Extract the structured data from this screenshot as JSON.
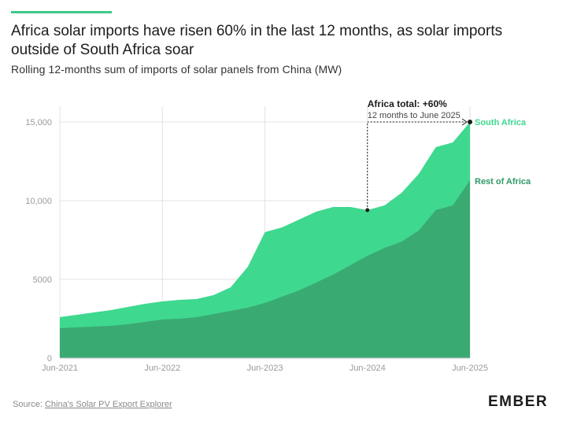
{
  "header": {
    "title": "Africa solar imports have risen 60% in the last 12 months, as solar imports outside of South Africa soar",
    "subtitle": "Rolling 12-months sum of imports of solar panels from China (MW)"
  },
  "footer": {
    "source_prefix": "Source: ",
    "source_link": "China's Solar PV Export Explorer",
    "logo": "EMBER"
  },
  "colors": {
    "south_africa": "#3fd88f",
    "rest_of_africa": "#3aaa73",
    "grid": "#e3e3e3",
    "axis_text": "#9a9a9a",
    "accent": "#3cc98b"
  },
  "chart_data": {
    "type": "area",
    "stacked": true,
    "xlabel": "",
    "ylabel": "",
    "xlim": [
      "2021-06",
      "2025-06"
    ],
    "ylim": [
      0,
      15000
    ],
    "y_ticks": [
      0,
      5000,
      10000,
      15000
    ],
    "y_tick_labels": [
      "0",
      "5000",
      "10,000",
      "15,000"
    ],
    "x_ticks": [
      "2021-06",
      "2022-06",
      "2023-06",
      "2024-06",
      "2025-06"
    ],
    "x_tick_labels": [
      "Jun-2021",
      "Jun-2022",
      "Jun-2023",
      "Jun-2024",
      "Jun-2025"
    ],
    "grid": true,
    "x": [
      "2021-06",
      "2021-08",
      "2021-10",
      "2021-12",
      "2022-02",
      "2022-04",
      "2022-06",
      "2022-08",
      "2022-10",
      "2022-12",
      "2023-02",
      "2023-04",
      "2023-06",
      "2023-08",
      "2023-10",
      "2023-12",
      "2024-02",
      "2024-04",
      "2024-06",
      "2024-08",
      "2024-10",
      "2024-12",
      "2025-02",
      "2025-04",
      "2025-06"
    ],
    "series": [
      {
        "name": "Rest of Africa",
        "values": [
          1900,
          1950,
          2000,
          2050,
          2150,
          2300,
          2450,
          2500,
          2600,
          2800,
          3000,
          3200,
          3500,
          3900,
          4300,
          4800,
          5300,
          5900,
          6500,
          7000,
          7400,
          8100,
          9400,
          9700,
          11300
        ]
      },
      {
        "name": "South Africa",
        "values": [
          700,
          800,
          900,
          1000,
          1100,
          1150,
          1150,
          1200,
          1150,
          1200,
          1500,
          2600,
          4500,
          4400,
          4500,
          4500,
          4300,
          3700,
          2900,
          2700,
          3100,
          3600,
          4000,
          4000,
          3700
        ]
      }
    ],
    "annotations": [
      {
        "label": "Africa total: +60%",
        "sublabel": "12 months to June 2025"
      },
      {
        "label": "South Africa"
      },
      {
        "label": "Rest of Africa"
      }
    ]
  }
}
